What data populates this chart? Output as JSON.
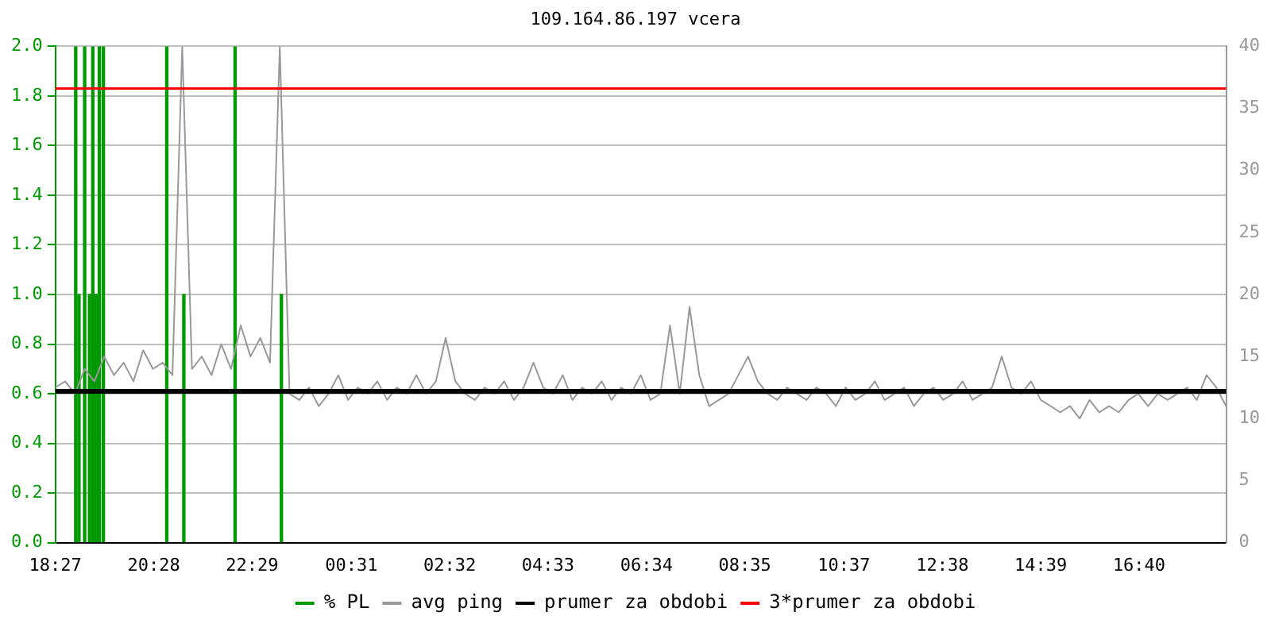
{
  "chart_data": {
    "type": "line",
    "title": "109.164.86.197 vcera",
    "xlim": [
      "--01-01T18:27",
      "--01-02T18:27"
    ],
    "xticks": [
      {
        "value": "--01-01T18:27",
        "label": "18:27"
      },
      {
        "value": "--01-01T20:28",
        "label": "20:28"
      },
      {
        "value": "--01-01T22:29",
        "label": "22:29"
      },
      {
        "value": "--01-02T00:31",
        "label": "00:31"
      },
      {
        "value": "--01-02T02:32",
        "label": "02:32"
      },
      {
        "value": "--01-02T04:33",
        "label": "04:33"
      },
      {
        "value": "--01-02T06:34",
        "label": "06:34"
      },
      {
        "value": "--01-02T08:35",
        "label": "08:35"
      },
      {
        "value": "--01-02T10:37",
        "label": "10:37"
      },
      {
        "value": "--01-02T12:38",
        "label": "12:38"
      },
      {
        "value": "--01-02T14:39",
        "label": "14:39"
      },
      {
        "value": "--01-02T16:40",
        "label": "16:40"
      }
    ],
    "ylim": [
      0,
      2
    ],
    "yticks": [
      {
        "value": 0,
        "label": "0.0"
      },
      0.2,
      0.4,
      0.6,
      0.8,
      {
        "value": 1,
        "label": "1.0"
      },
      1.2,
      1.4,
      1.6,
      1.8,
      {
        "value": 2,
        "label": "2.0"
      }
    ],
    "y2lim": [
      0,
      40
    ],
    "y2ticks": [
      0,
      5,
      10,
      15,
      20,
      25,
      30,
      35,
      40
    ],
    "grid": "y",
    "legend": "bottom",
    "series": [
      {
        "name": "% PL",
        "type": "bar",
        "color": "#009900",
        "x": [
          "--01-01T18:52",
          "--01-01T18:56",
          "--01-01T19:03",
          "--01-01T19:09",
          "--01-01T19:13",
          "--01-01T19:17",
          "--01-01T19:21",
          "--01-01T19:26",
          "--01-01T20:44",
          "--01-01T21:05",
          "--01-01T22:08",
          "--01-01T23:05"
        ],
        "values": [
          2,
          1,
          2,
          1,
          2,
          1,
          2,
          2,
          2,
          1,
          2,
          1
        ]
      },
      {
        "name": "avg ping",
        "axis": "y2",
        "color": "#999999",
        "x": [
          "--01-01T18:27",
          "--01-01T18:39",
          "--01-01T18:51",
          "--01-01T19:03",
          "--01-01T19:15",
          "--01-01T19:27",
          "--01-01T19:39",
          "--01-01T19:51",
          "--01-01T20:03",
          "--01-01T20:15",
          "--01-01T20:27",
          "--01-01T20:39",
          "--01-01T20:51",
          "--01-01T21:03",
          "--01-01T21:15",
          "--01-01T21:27",
          "--01-01T21:39",
          "--01-01T21:51",
          "--01-01T22:03",
          "--01-01T22:15",
          "--01-01T22:27",
          "--01-01T22:39",
          "--01-01T22:51",
          "--01-01T23:03",
          "--01-01T23:15",
          "--01-01T23:27",
          "--01-01T23:39",
          "--01-01T23:51",
          "--01-02T00:03",
          "--01-02T00:15",
          "--01-02T00:27",
          "--01-02T00:39",
          "--01-02T00:51",
          "--01-02T01:03",
          "--01-02T01:15",
          "--01-02T01:27",
          "--01-02T01:39",
          "--01-02T01:51",
          "--01-02T02:03",
          "--01-02T02:15",
          "--01-02T02:27",
          "--01-02T02:39",
          "--01-02T02:51",
          "--01-02T03:03",
          "--01-02T03:15",
          "--01-02T03:27",
          "--01-02T03:39",
          "--01-02T03:51",
          "--01-02T04:03",
          "--01-02T04:15",
          "--01-02T04:27",
          "--01-02T04:39",
          "--01-02T04:51",
          "--01-02T05:03",
          "--01-02T05:15",
          "--01-02T05:27",
          "--01-02T05:39",
          "--01-02T05:51",
          "--01-02T06:03",
          "--01-02T06:15",
          "--01-02T06:27",
          "--01-02T06:39",
          "--01-02T06:51",
          "--01-02T07:03",
          "--01-02T07:15",
          "--01-02T07:27",
          "--01-02T07:39",
          "--01-02T07:51",
          "--01-02T08:03",
          "--01-02T08:15",
          "--01-02T08:27",
          "--01-02T08:39",
          "--01-02T08:51",
          "--01-02T09:03",
          "--01-02T09:15",
          "--01-02T09:27",
          "--01-02T09:39",
          "--01-02T09:51",
          "--01-02T10:03",
          "--01-02T10:15",
          "--01-02T10:27",
          "--01-02T10:39",
          "--01-02T10:51",
          "--01-02T11:03",
          "--01-02T11:15",
          "--01-02T11:27",
          "--01-02T11:39",
          "--01-02T11:51",
          "--01-02T12:03",
          "--01-02T12:15",
          "--01-02T12:27",
          "--01-02T12:39",
          "--01-02T12:51",
          "--01-02T13:03",
          "--01-02T13:15",
          "--01-02T13:27",
          "--01-02T13:39",
          "--01-02T13:51",
          "--01-02T14:03",
          "--01-02T14:15",
          "--01-02T14:27",
          "--01-02T14:39",
          "--01-02T14:51",
          "--01-02T15:03",
          "--01-02T15:15",
          "--01-02T15:27",
          "--01-02T15:39",
          "--01-02T15:51",
          "--01-02T16:03",
          "--01-02T16:15",
          "--01-02T16:27",
          "--01-02T16:39",
          "--01-02T16:51",
          "--01-02T17:03",
          "--01-02T17:15",
          "--01-02T17:27",
          "--01-02T17:39",
          "--01-02T17:51",
          "--01-02T18:03",
          "--01-02T18:15",
          "--01-02T18:27"
        ],
        "values": [
          12.5,
          13,
          12,
          14,
          13,
          15,
          13.5,
          14.5,
          13,
          15.5,
          14,
          14.5,
          13.5,
          40,
          14,
          15,
          13.5,
          16,
          14,
          17.5,
          15,
          16.5,
          14.5,
          40,
          12,
          11.5,
          12.5,
          11,
          12,
          13.5,
          11.5,
          12.5,
          12,
          13,
          11.5,
          12.5,
          12,
          13.5,
          12,
          13,
          16.5,
          13,
          12,
          11.5,
          12.5,
          12,
          13,
          11.5,
          12.5,
          14.5,
          12.5,
          12,
          13.5,
          11.5,
          12.5,
          12,
          13,
          11.5,
          12.5,
          12,
          13.5,
          11.5,
          12,
          17.5,
          12,
          19,
          13.5,
          11,
          11.5,
          12,
          13.5,
          15,
          13,
          12,
          11.5,
          12.5,
          12,
          11.5,
          12.5,
          12,
          11,
          12.5,
          11.5,
          12,
          13,
          11.5,
          12,
          12.5,
          11,
          12,
          12.5,
          11.5,
          12,
          13,
          11.5,
          12,
          12.5,
          15,
          12.5,
          12,
          13,
          11.5,
          11,
          10.5,
          11,
          10,
          11.5,
          10.5,
          11,
          10.5,
          11.5,
          12,
          11,
          12,
          11.5,
          12,
          12.5,
          11.5,
          13.5,
          12.5,
          11
        ]
      }
    ],
    "ref_lines": [
      {
        "axis": "y2",
        "value": 12.2,
        "label": "prumer za obdobi",
        "color": "#000000"
      },
      {
        "axis": "y2",
        "value": 36.6,
        "label": "3*prumer za obdobi",
        "color": "#ff0000"
      }
    ]
  }
}
